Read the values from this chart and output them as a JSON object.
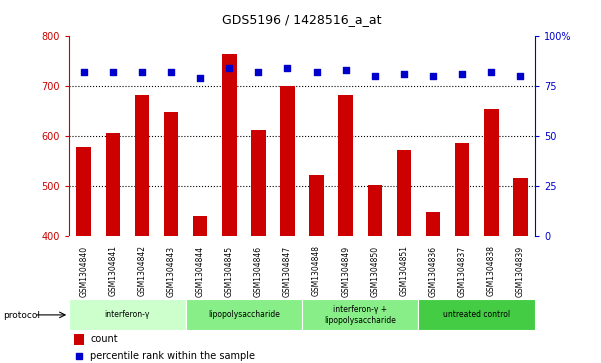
{
  "title": "GDS5196 / 1428516_a_at",
  "samples": [
    "GSM1304840",
    "GSM1304841",
    "GSM1304842",
    "GSM1304843",
    "GSM1304844",
    "GSM1304845",
    "GSM1304846",
    "GSM1304847",
    "GSM1304848",
    "GSM1304849",
    "GSM1304850",
    "GSM1304851",
    "GSM1304836",
    "GSM1304837",
    "GSM1304838",
    "GSM1304839"
  ],
  "counts": [
    578,
    607,
    683,
    648,
    440,
    765,
    613,
    700,
    523,
    683,
    502,
    572,
    448,
    587,
    655,
    516
  ],
  "percentiles": [
    82,
    82,
    82,
    82,
    79,
    84,
    82,
    84,
    82,
    83,
    80,
    81,
    80,
    81,
    82,
    80
  ],
  "bar_color": "#cc0000",
  "dot_color": "#0000cc",
  "ylim_left": [
    400,
    800
  ],
  "ylim_right": [
    0,
    100
  ],
  "yticks_left": [
    400,
    500,
    600,
    700,
    800
  ],
  "yticks_right": [
    0,
    25,
    50,
    75,
    100
  ],
  "grid_ticks": [
    500,
    600,
    700
  ],
  "protocols": [
    {
      "label": "interferon-γ",
      "start": 0,
      "end": 4,
      "color": "#ccffcc"
    },
    {
      "label": "lipopolysaccharide",
      "start": 4,
      "end": 8,
      "color": "#88ee88"
    },
    {
      "label": "interferon-γ +\nlipopolysaccharide",
      "start": 8,
      "end": 12,
      "color": "#88ee88"
    },
    {
      "label": "untreated control",
      "start": 12,
      "end": 16,
      "color": "#44cc44"
    }
  ],
  "left_axis_color": "#cc0000",
  "right_axis_color": "#0000cc",
  "legend_count_label": "count",
  "legend_percentile_label": "percentile rank within the sample",
  "protocol_label": "protocol",
  "bg_color": "#ffffff",
  "sample_bg_color": "#d3d3d3"
}
